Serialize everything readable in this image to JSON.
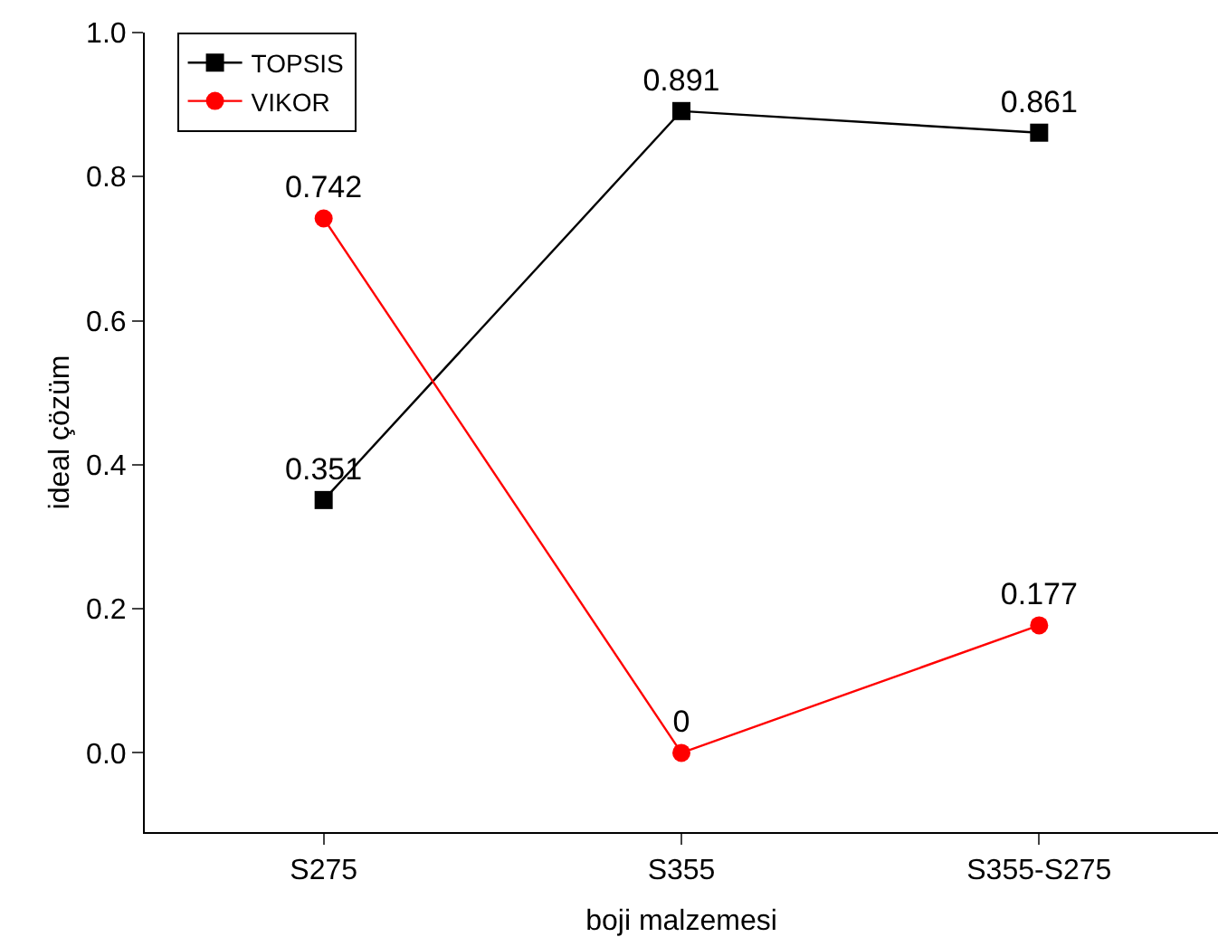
{
  "chart_data": {
    "type": "line",
    "xlabel": "boji malzemesi",
    "ylabel": "ideal çözüm",
    "categories": [
      "S275",
      "S355",
      "S355-S275"
    ],
    "series": [
      {
        "name": "TOPSIS",
        "color": "#000000",
        "marker": "square",
        "values": [
          0.351,
          0.891,
          0.861
        ]
      },
      {
        "name": "VIKOR",
        "color": "#ff0000",
        "marker": "circle",
        "values": [
          0.742,
          0,
          0.177
        ]
      }
    ],
    "ylim": [
      -0.11,
      1.0
    ],
    "yticks": [
      {
        "value": 0,
        "label": "0.0"
      },
      0.2,
      0.4,
      0.6,
      0.8,
      {
        "value": 1,
        "label": "1.0"
      }
    ],
    "data_labels": true,
    "legend": "top left",
    "grid": false
  }
}
